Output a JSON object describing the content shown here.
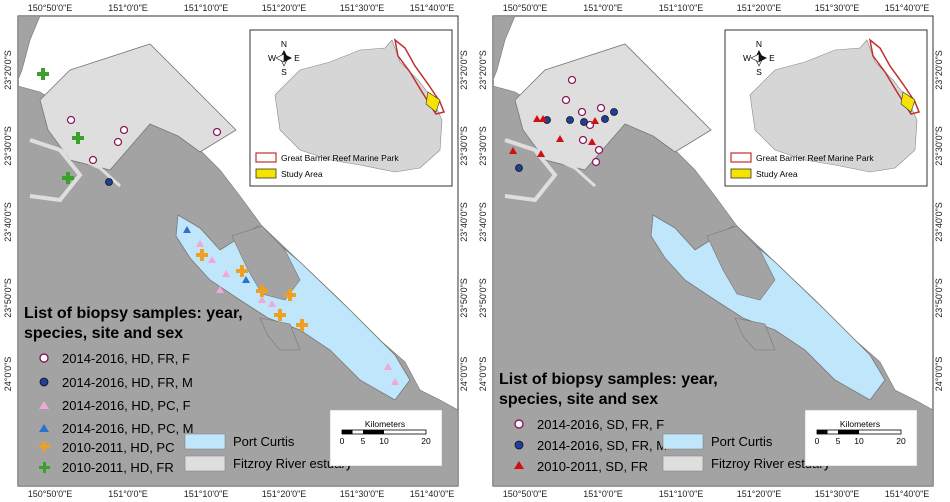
{
  "panels": [
    {
      "id": "left",
      "x_ticks": [
        "150°50'0\"E",
        "151°0'0\"E",
        "151°10'0\"E",
        "151°20'0\"E",
        "151°30'0\"E",
        "151°40'0\"E"
      ],
      "y_ticks": [
        "23°20'0\"S",
        "23°30'0\"S",
        "23°40'0\"S",
        "23°50'0\"S",
        "24°0'0\"S"
      ],
      "legend_title_lines": [
        "List of biopsy samples: year,",
        "species, site and sex"
      ],
      "legend_items": [
        {
          "label": "2014-2016, HD, FR, F",
          "symbol": "open-circle",
          "color": "#8b1a5a"
        },
        {
          "label": "2014-2016, HD, FR, M",
          "symbol": "filled-circle",
          "color": "#1f3f9a"
        },
        {
          "label": "2014-2016, HD, PC, F",
          "symbol": "triangle",
          "color": "#f2a7d6"
        },
        {
          "label": "2014-2016, HD, PC, M",
          "symbol": "triangle",
          "color": "#2f6fd0"
        },
        {
          "label": "2010-2011, HD, PC",
          "symbol": "plus",
          "color": "#f0a020"
        },
        {
          "label": "2010-2011, HD, FR",
          "symbol": "plus",
          "color": "#3aa12a"
        }
      ],
      "area_legend": [
        {
          "label": "Port Curtis",
          "color": "#bfe6fa"
        },
        {
          "label": "Fitzroy River estuary",
          "color": "#dedede"
        }
      ],
      "scale": {
        "title": "Kilometers",
        "ticks": [
          "0",
          "5",
          "10",
          "20"
        ]
      },
      "inset": {
        "north": "N",
        "south": "S",
        "east": "E",
        "west": "W",
        "legend": [
          {
            "label": "Great Barrier Reef Marine Park",
            "color": "#c03030"
          },
          {
            "label": "Study Area",
            "color": "#f5e400"
          }
        ]
      }
    },
    {
      "id": "right",
      "x_ticks": [
        "150°50'0\"E",
        "151°0'0\"E",
        "151°10'0\"E",
        "151°20'0\"E",
        "151°30'0\"E",
        "151°40'0\"E"
      ],
      "y_ticks": [
        "23°20'0\"S",
        "23°30'0\"S",
        "23°40'0\"S",
        "23°50'0\"S",
        "24°0'0\"S"
      ],
      "legend_title_lines": [
        "List of biopsy samples: year,",
        "species, site and sex"
      ],
      "legend_items": [
        {
          "label": "2014-2016, SD, FR, F",
          "symbol": "open-circle",
          "color": "#8b1a5a"
        },
        {
          "label": "2014-2016, SD, FR, M",
          "symbol": "filled-circle",
          "color": "#1f3f9a"
        },
        {
          "label": "2010-2011, SD, FR",
          "symbol": "triangle",
          "color": "#d01010"
        }
      ],
      "area_legend": [
        {
          "label": "Port Curtis",
          "color": "#bfe6fa"
        },
        {
          "label": "Fitzroy River estuary",
          "color": "#dedede"
        }
      ],
      "scale": {
        "title": "Kilometers",
        "ticks": [
          "0",
          "5",
          "10",
          "20"
        ]
      },
      "inset": {
        "north": "N",
        "south": "S",
        "east": "E",
        "west": "W",
        "legend": [
          {
            "label": "Great Barrier Reef Marine Park",
            "color": "#c03030"
          },
          {
            "label": "Study Area",
            "color": "#f5e400"
          }
        ]
      }
    }
  ],
  "colors": {
    "land": "#a3a3a3",
    "sea": "#ffffff",
    "port_curtis": "#bfe6fa",
    "fitzroy_estuary": "#dedede"
  }
}
